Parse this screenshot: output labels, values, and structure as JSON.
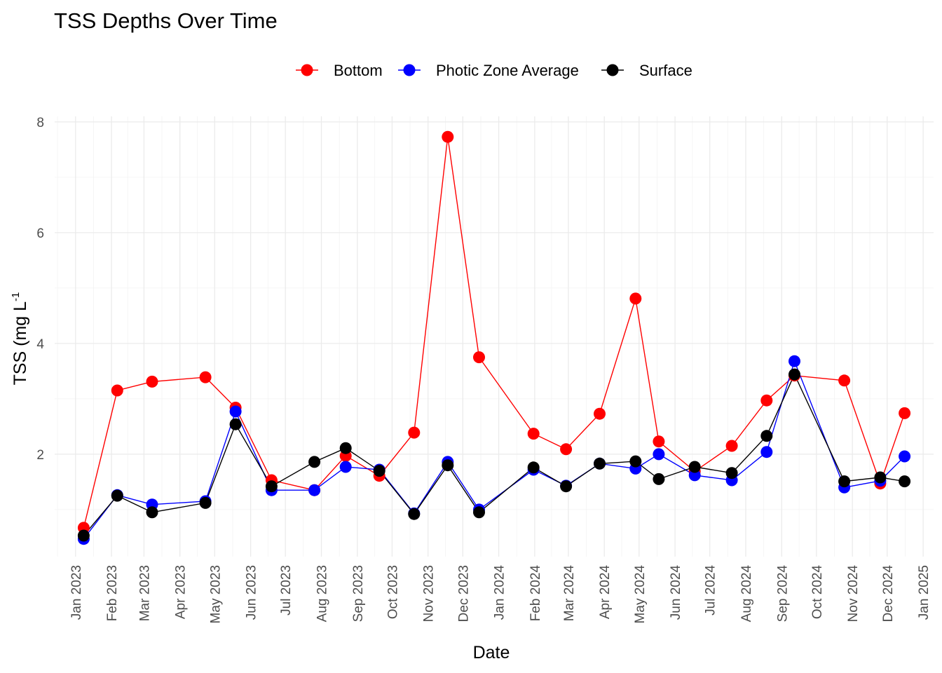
{
  "chart_data": {
    "type": "line",
    "title": "TSS Depths Over Time",
    "xlabel": "Date",
    "ylabel": "TSS (mg L",
    "ylabel_superscript": "-1",
    "x_tick_labels": [
      "Jan 2023",
      "Feb 2023",
      "Mar 2023",
      "Apr 2023",
      "May 2023",
      "Jun 2023",
      "Jul 2023",
      "Aug 2023",
      "Sep 2023",
      "Oct 2023",
      "Nov 2023",
      "Dec 2023",
      "Jan 2024",
      "Feb 2024",
      "Mar 2024",
      "Apr 2024",
      "May 2024",
      "Jun 2024",
      "Jul 2024",
      "Aug 2024",
      "Sep 2024",
      "Oct 2024",
      "Nov 2024",
      "Dec 2024",
      "Jan 2025"
    ],
    "x_tick_dates": [
      "2023-01-01",
      "2023-02-01",
      "2023-03-01",
      "2023-04-01",
      "2023-05-01",
      "2023-06-01",
      "2023-07-01",
      "2023-08-01",
      "2023-09-01",
      "2023-10-01",
      "2023-11-01",
      "2023-12-01",
      "2024-01-01",
      "2024-02-01",
      "2024-03-01",
      "2024-04-01",
      "2024-05-01",
      "2024-06-01",
      "2024-07-01",
      "2024-08-01",
      "2024-09-01",
      "2024-10-01",
      "2024-11-01",
      "2024-12-01",
      "2025-01-01"
    ],
    "xlim": [
      "2022-12-14",
      "2025-01-10"
    ],
    "y_ticks": [
      2,
      4,
      6,
      8
    ],
    "ylim": [
      0.15,
      8.1
    ],
    "grid": true,
    "legend_position": "top",
    "series": [
      {
        "name": "Bottom",
        "color": "#ff0000",
        "points": [
          {
            "x": "2023-01-08",
            "y": 0.67
          },
          {
            "x": "2023-02-06",
            "y": 3.15
          },
          {
            "x": "2023-03-08",
            "y": 3.31
          },
          {
            "x": "2023-04-23",
            "y": 3.39
          },
          {
            "x": "2023-05-19",
            "y": 2.84
          },
          {
            "x": "2023-06-19",
            "y": 1.53
          },
          {
            "x": "2023-07-26",
            "y": 1.35
          },
          {
            "x": "2023-08-22",
            "y": 1.97
          },
          {
            "x": "2023-09-20",
            "y": 1.61
          },
          {
            "x": "2023-10-20",
            "y": 2.39
          },
          {
            "x": "2023-11-18",
            "y": 7.73
          },
          {
            "x": "2023-12-15",
            "y": 3.75
          },
          {
            "x": "2024-01-31",
            "y": 2.37
          },
          {
            "x": "2024-02-28",
            "y": 2.09
          },
          {
            "x": "2024-03-28",
            "y": 2.73
          },
          {
            "x": "2024-04-28",
            "y": 4.81
          },
          {
            "x": "2024-05-18",
            "y": 2.23
          },
          {
            "x": "2024-06-18",
            "y": 1.69
          },
          {
            "x": "2024-07-20",
            "y": 2.15
          },
          {
            "x": "2024-08-19",
            "y": 2.97
          },
          {
            "x": "2024-09-12",
            "y": 3.42
          },
          {
            "x": "2024-10-25",
            "y": 3.33
          },
          {
            "x": "2024-11-25",
            "y": 1.47
          },
          {
            "x": "2024-12-16",
            "y": 2.74
          }
        ]
      },
      {
        "name": "Photic Zone Average",
        "color": "#0000ff",
        "points": [
          {
            "x": "2023-01-08",
            "y": 0.47
          },
          {
            "x": "2023-02-06",
            "y": 1.26
          },
          {
            "x": "2023-03-08",
            "y": 1.09
          },
          {
            "x": "2023-04-23",
            "y": 1.15
          },
          {
            "x": "2023-05-19",
            "y": 2.77
          },
          {
            "x": "2023-06-19",
            "y": 1.35
          },
          {
            "x": "2023-07-26",
            "y": 1.35
          },
          {
            "x": "2023-08-22",
            "y": 1.77
          },
          {
            "x": "2023-09-20",
            "y": 1.72
          },
          {
            "x": "2023-10-20",
            "y": 0.93
          },
          {
            "x": "2023-11-18",
            "y": 1.86
          },
          {
            "x": "2023-12-15",
            "y": 1.0
          },
          {
            "x": "2024-01-31",
            "y": 1.72
          },
          {
            "x": "2024-02-28",
            "y": 1.43
          },
          {
            "x": "2024-03-28",
            "y": 1.83
          },
          {
            "x": "2024-04-28",
            "y": 1.74
          },
          {
            "x": "2024-05-18",
            "y": 2.0
          },
          {
            "x": "2024-06-18",
            "y": 1.62
          },
          {
            "x": "2024-07-20",
            "y": 1.53
          },
          {
            "x": "2024-08-19",
            "y": 2.04
          },
          {
            "x": "2024-09-12",
            "y": 3.68
          },
          {
            "x": "2024-10-25",
            "y": 1.4
          },
          {
            "x": "2024-11-25",
            "y": 1.52
          },
          {
            "x": "2024-12-16",
            "y": 1.96
          }
        ]
      },
      {
        "name": "Surface",
        "color": "#000000",
        "points": [
          {
            "x": "2023-01-08",
            "y": 0.53
          },
          {
            "x": "2023-02-06",
            "y": 1.25
          },
          {
            "x": "2023-03-08",
            "y": 0.95
          },
          {
            "x": "2023-04-23",
            "y": 1.12
          },
          {
            "x": "2023-05-19",
            "y": 2.54
          },
          {
            "x": "2023-06-19",
            "y": 1.42
          },
          {
            "x": "2023-07-26",
            "y": 1.86
          },
          {
            "x": "2023-08-22",
            "y": 2.11
          },
          {
            "x": "2023-09-20",
            "y": 1.7
          },
          {
            "x": "2023-10-20",
            "y": 0.92
          },
          {
            "x": "2023-11-18",
            "y": 1.8
          },
          {
            "x": "2023-12-15",
            "y": 0.95
          },
          {
            "x": "2024-01-31",
            "y": 1.76
          },
          {
            "x": "2024-02-28",
            "y": 1.42
          },
          {
            "x": "2024-03-28",
            "y": 1.83
          },
          {
            "x": "2024-04-28",
            "y": 1.87
          },
          {
            "x": "2024-05-18",
            "y": 1.55
          },
          {
            "x": "2024-06-18",
            "y": 1.77
          },
          {
            "x": "2024-07-20",
            "y": 1.66
          },
          {
            "x": "2024-08-19",
            "y": 2.33
          },
          {
            "x": "2024-09-12",
            "y": 3.44
          },
          {
            "x": "2024-10-25",
            "y": 1.51
          },
          {
            "x": "2024-11-25",
            "y": 1.58
          },
          {
            "x": "2024-12-16",
            "y": 1.51
          }
        ]
      }
    ]
  }
}
